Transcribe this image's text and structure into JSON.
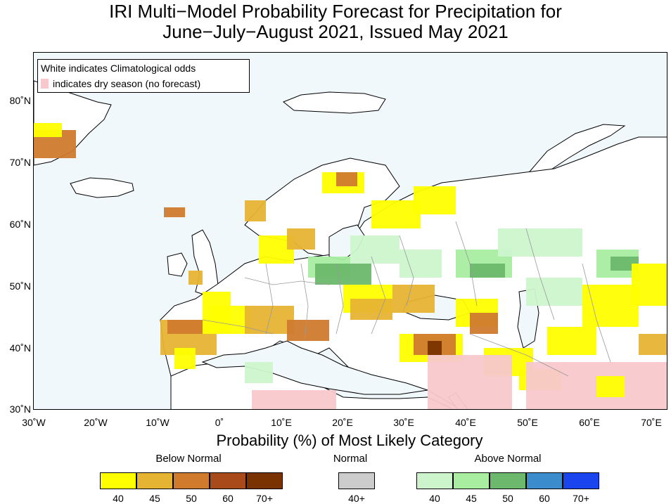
{
  "title": {
    "line1": "IRI Multi−Model Probability Forecast for Precipitation for",
    "line2": "June−July−August 2021, Issued May 2021"
  },
  "map_legend": {
    "line1": "White indicates Climatological odds",
    "line2": "indicates dry season (no forecast)"
  },
  "lat_labels": [
    "80˚N",
    "70˚N",
    "60˚N",
    "50˚N",
    "40˚N",
    "30˚N"
  ],
  "lon_labels": [
    "30˚W",
    "20˚W",
    "10˚W",
    "0˚",
    "10˚E",
    "20˚E",
    "30˚E",
    "40˚E",
    "50˚E",
    "60˚E",
    "70˚E"
  ],
  "colorbar": {
    "title": "Probability (%) of Most Likely Category",
    "below": {
      "label": "Below Normal",
      "colors": [
        "#ffff00",
        "#e6b433",
        "#d07a2e",
        "#a84a1a",
        "#7a3300"
      ],
      "ticks": [
        "40",
        "45",
        "50",
        "60",
        "70+"
      ]
    },
    "normal": {
      "label": "Normal",
      "colors": [
        "#cccccc"
      ],
      "ticks": [
        "40+"
      ]
    },
    "above": {
      "label": "Above Normal",
      "colors": [
        "#ccf5cc",
        "#a8eda0",
        "#6cb86c",
        "#3a8ccc",
        "#1a44ee"
      ],
      "ticks": [
        "40",
        "45",
        "50",
        "60",
        "70+"
      ]
    }
  },
  "map_colors": {
    "ocean": "#f0f8fc",
    "land": "#ffffff",
    "dry": "#f8c8cc"
  }
}
